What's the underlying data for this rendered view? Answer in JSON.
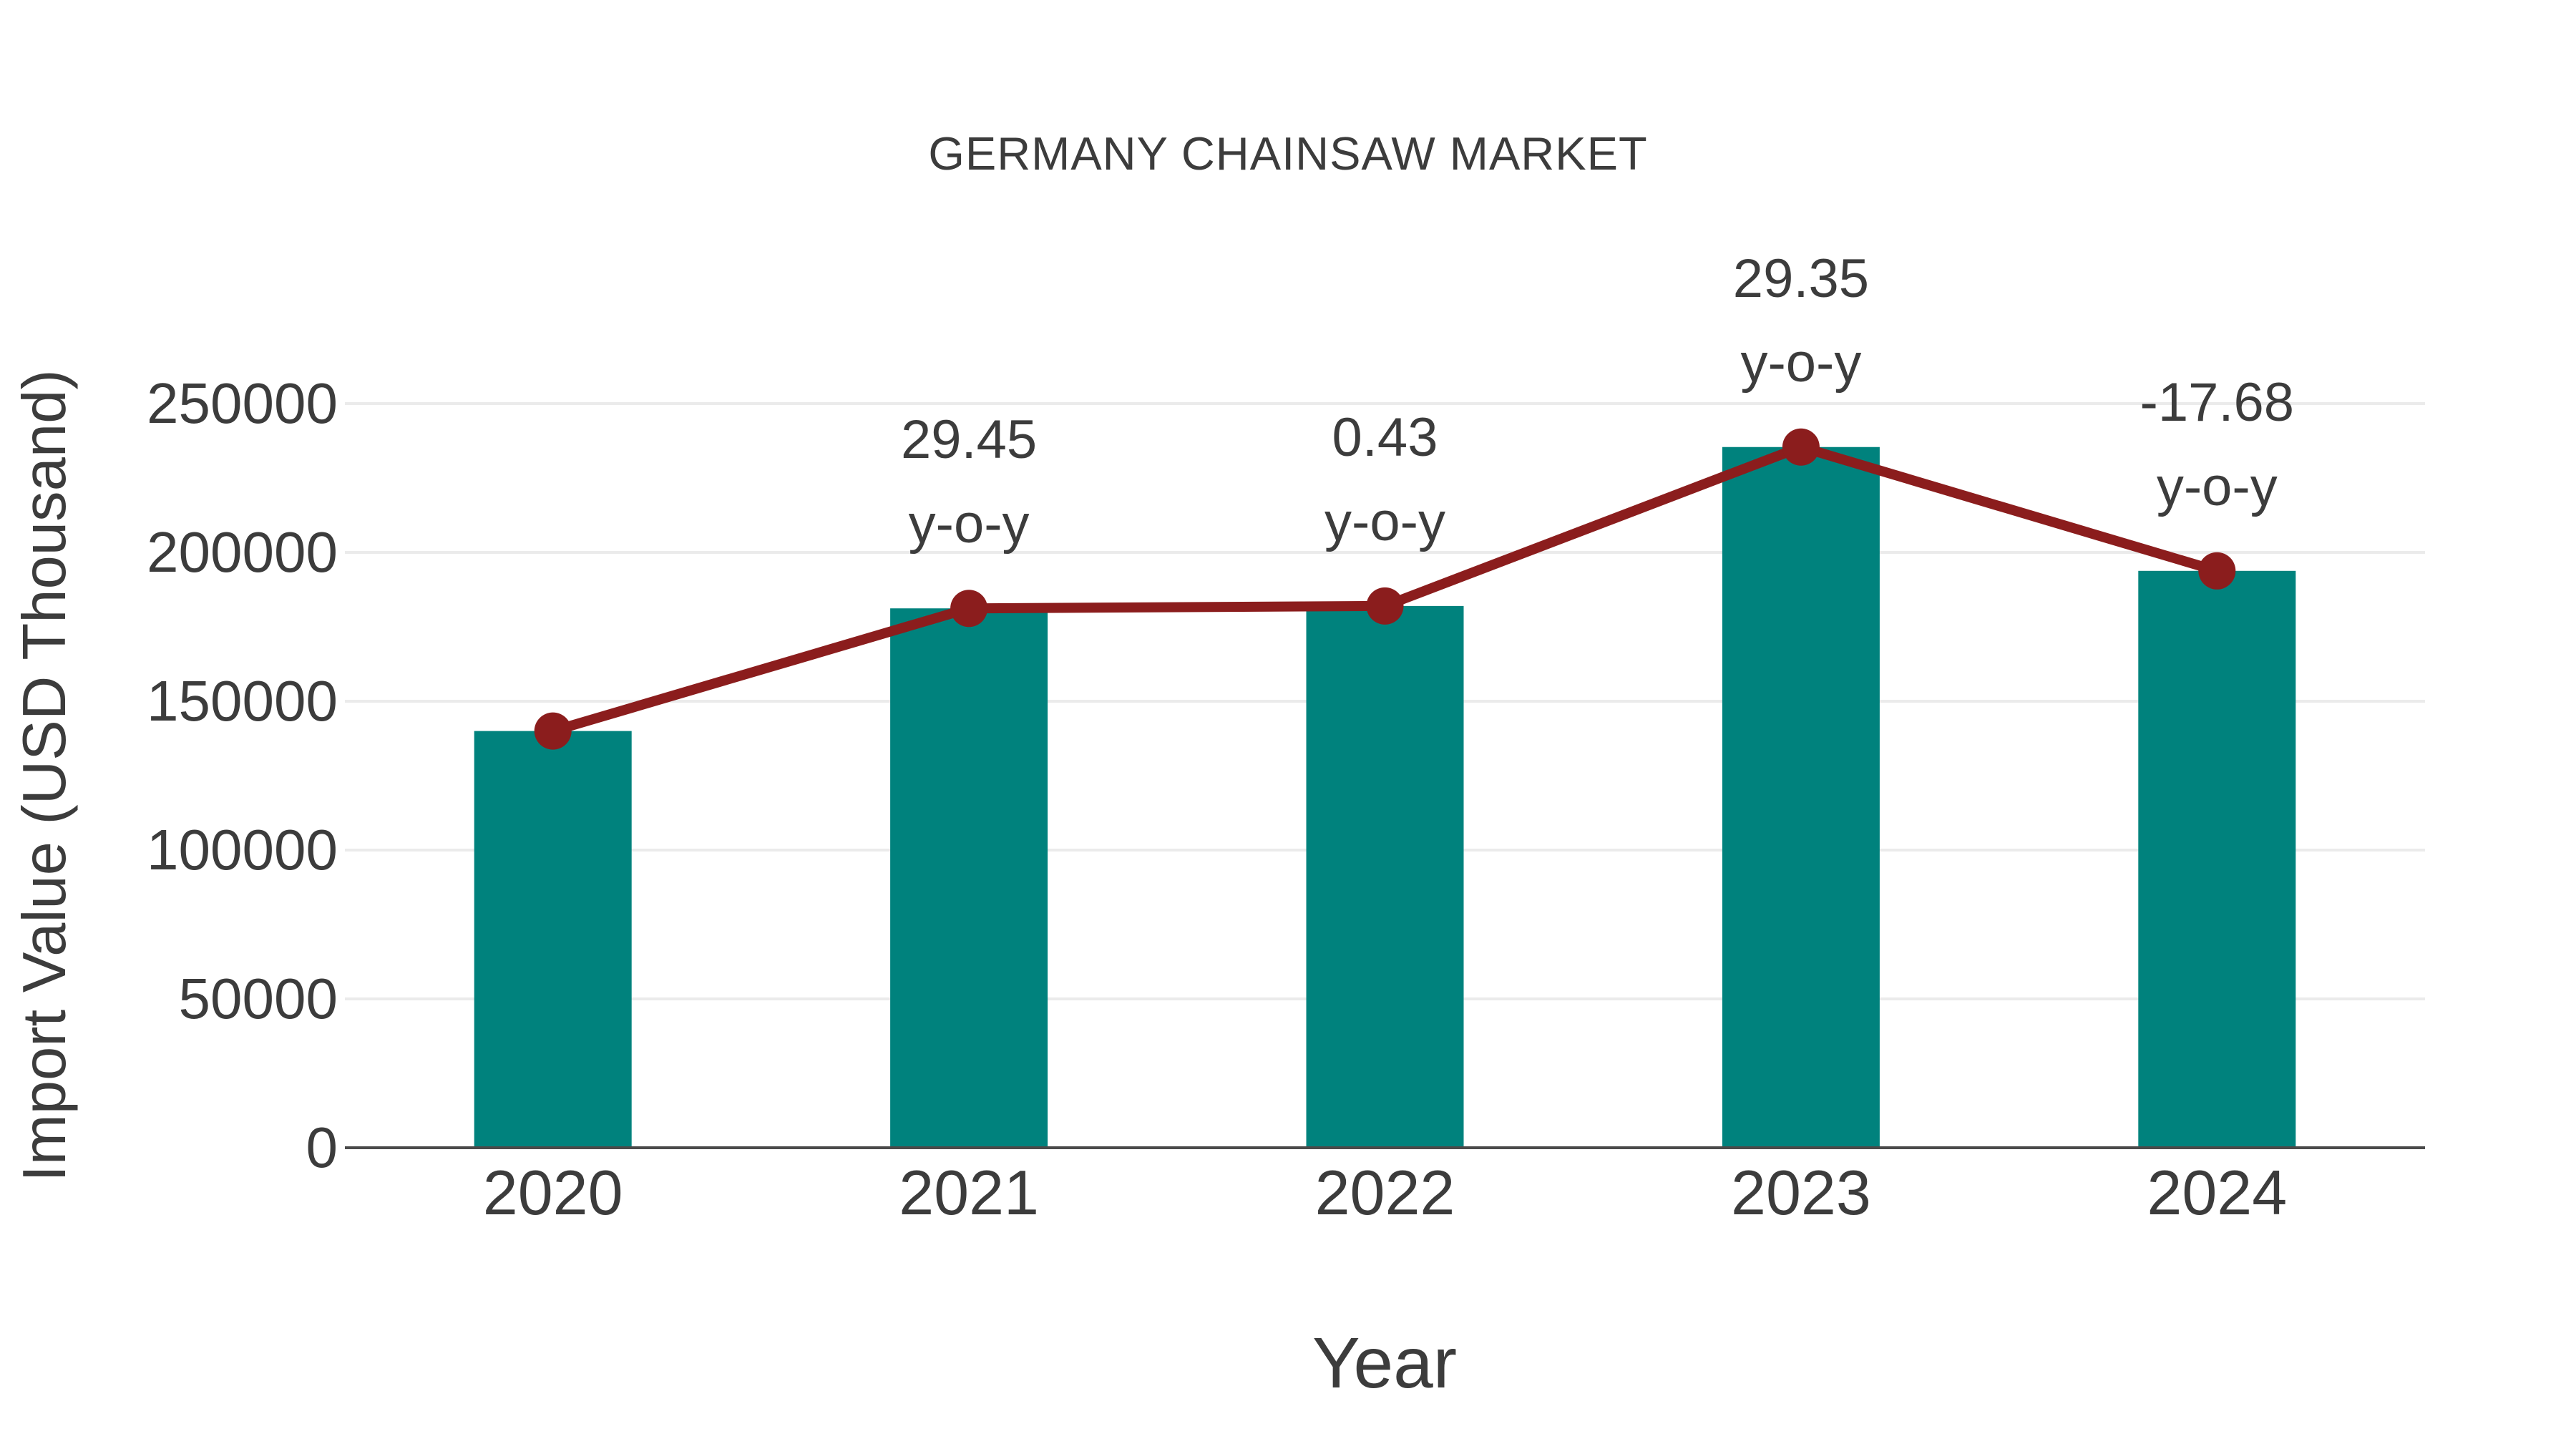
{
  "chart_data": {
    "type": "bar",
    "title": "GERMANY CHAINSAW MARKET",
    "xlabel": "Year",
    "ylabel": "Import Value (USD Thousand)",
    "categories": [
      "2020",
      "2021",
      "2022",
      "2023",
      "2024"
    ],
    "series": [
      {
        "name": "Import Value (USD Thousand)",
        "type": "bar",
        "color": "#00827D",
        "values": [
          140000,
          181200,
          182000,
          235400,
          193800
        ]
      },
      {
        "name": "y-o-y change (%)",
        "type": "line",
        "color": "#8B1D1D",
        "values": [
          null,
          29.45,
          0.43,
          29.35,
          -17.68
        ]
      }
    ],
    "annotations": [
      {
        "category": "2021",
        "line1": "29.45",
        "line2": "y-o-y"
      },
      {
        "category": "2022",
        "line1": "0.43",
        "line2": "y-o-y"
      },
      {
        "category": "2023",
        "line1": "29.35",
        "line2": "y-o-y"
      },
      {
        "category": "2024",
        "line1": "-17.68",
        "line2": "y-o-y"
      }
    ],
    "yticks": [
      {
        "label": "0",
        "value": 0
      },
      {
        "label": "50000",
        "value": 50000
      },
      {
        "label": "100000",
        "value": 100000
      },
      {
        "label": "150000",
        "value": 150000
      },
      {
        "label": "200000",
        "value": 200000
      },
      {
        "label": "250000",
        "value": 250000
      }
    ],
    "ylim": [
      0,
      272837
    ],
    "grid": true,
    "legend": false,
    "colors": {
      "bar": "#00827D",
      "line": "#8B1D1D",
      "marker": "#8B1D1D",
      "gridline": "#EBEBEB",
      "axis_line": "#4A4A4A",
      "text": "#3C3C3C"
    }
  }
}
